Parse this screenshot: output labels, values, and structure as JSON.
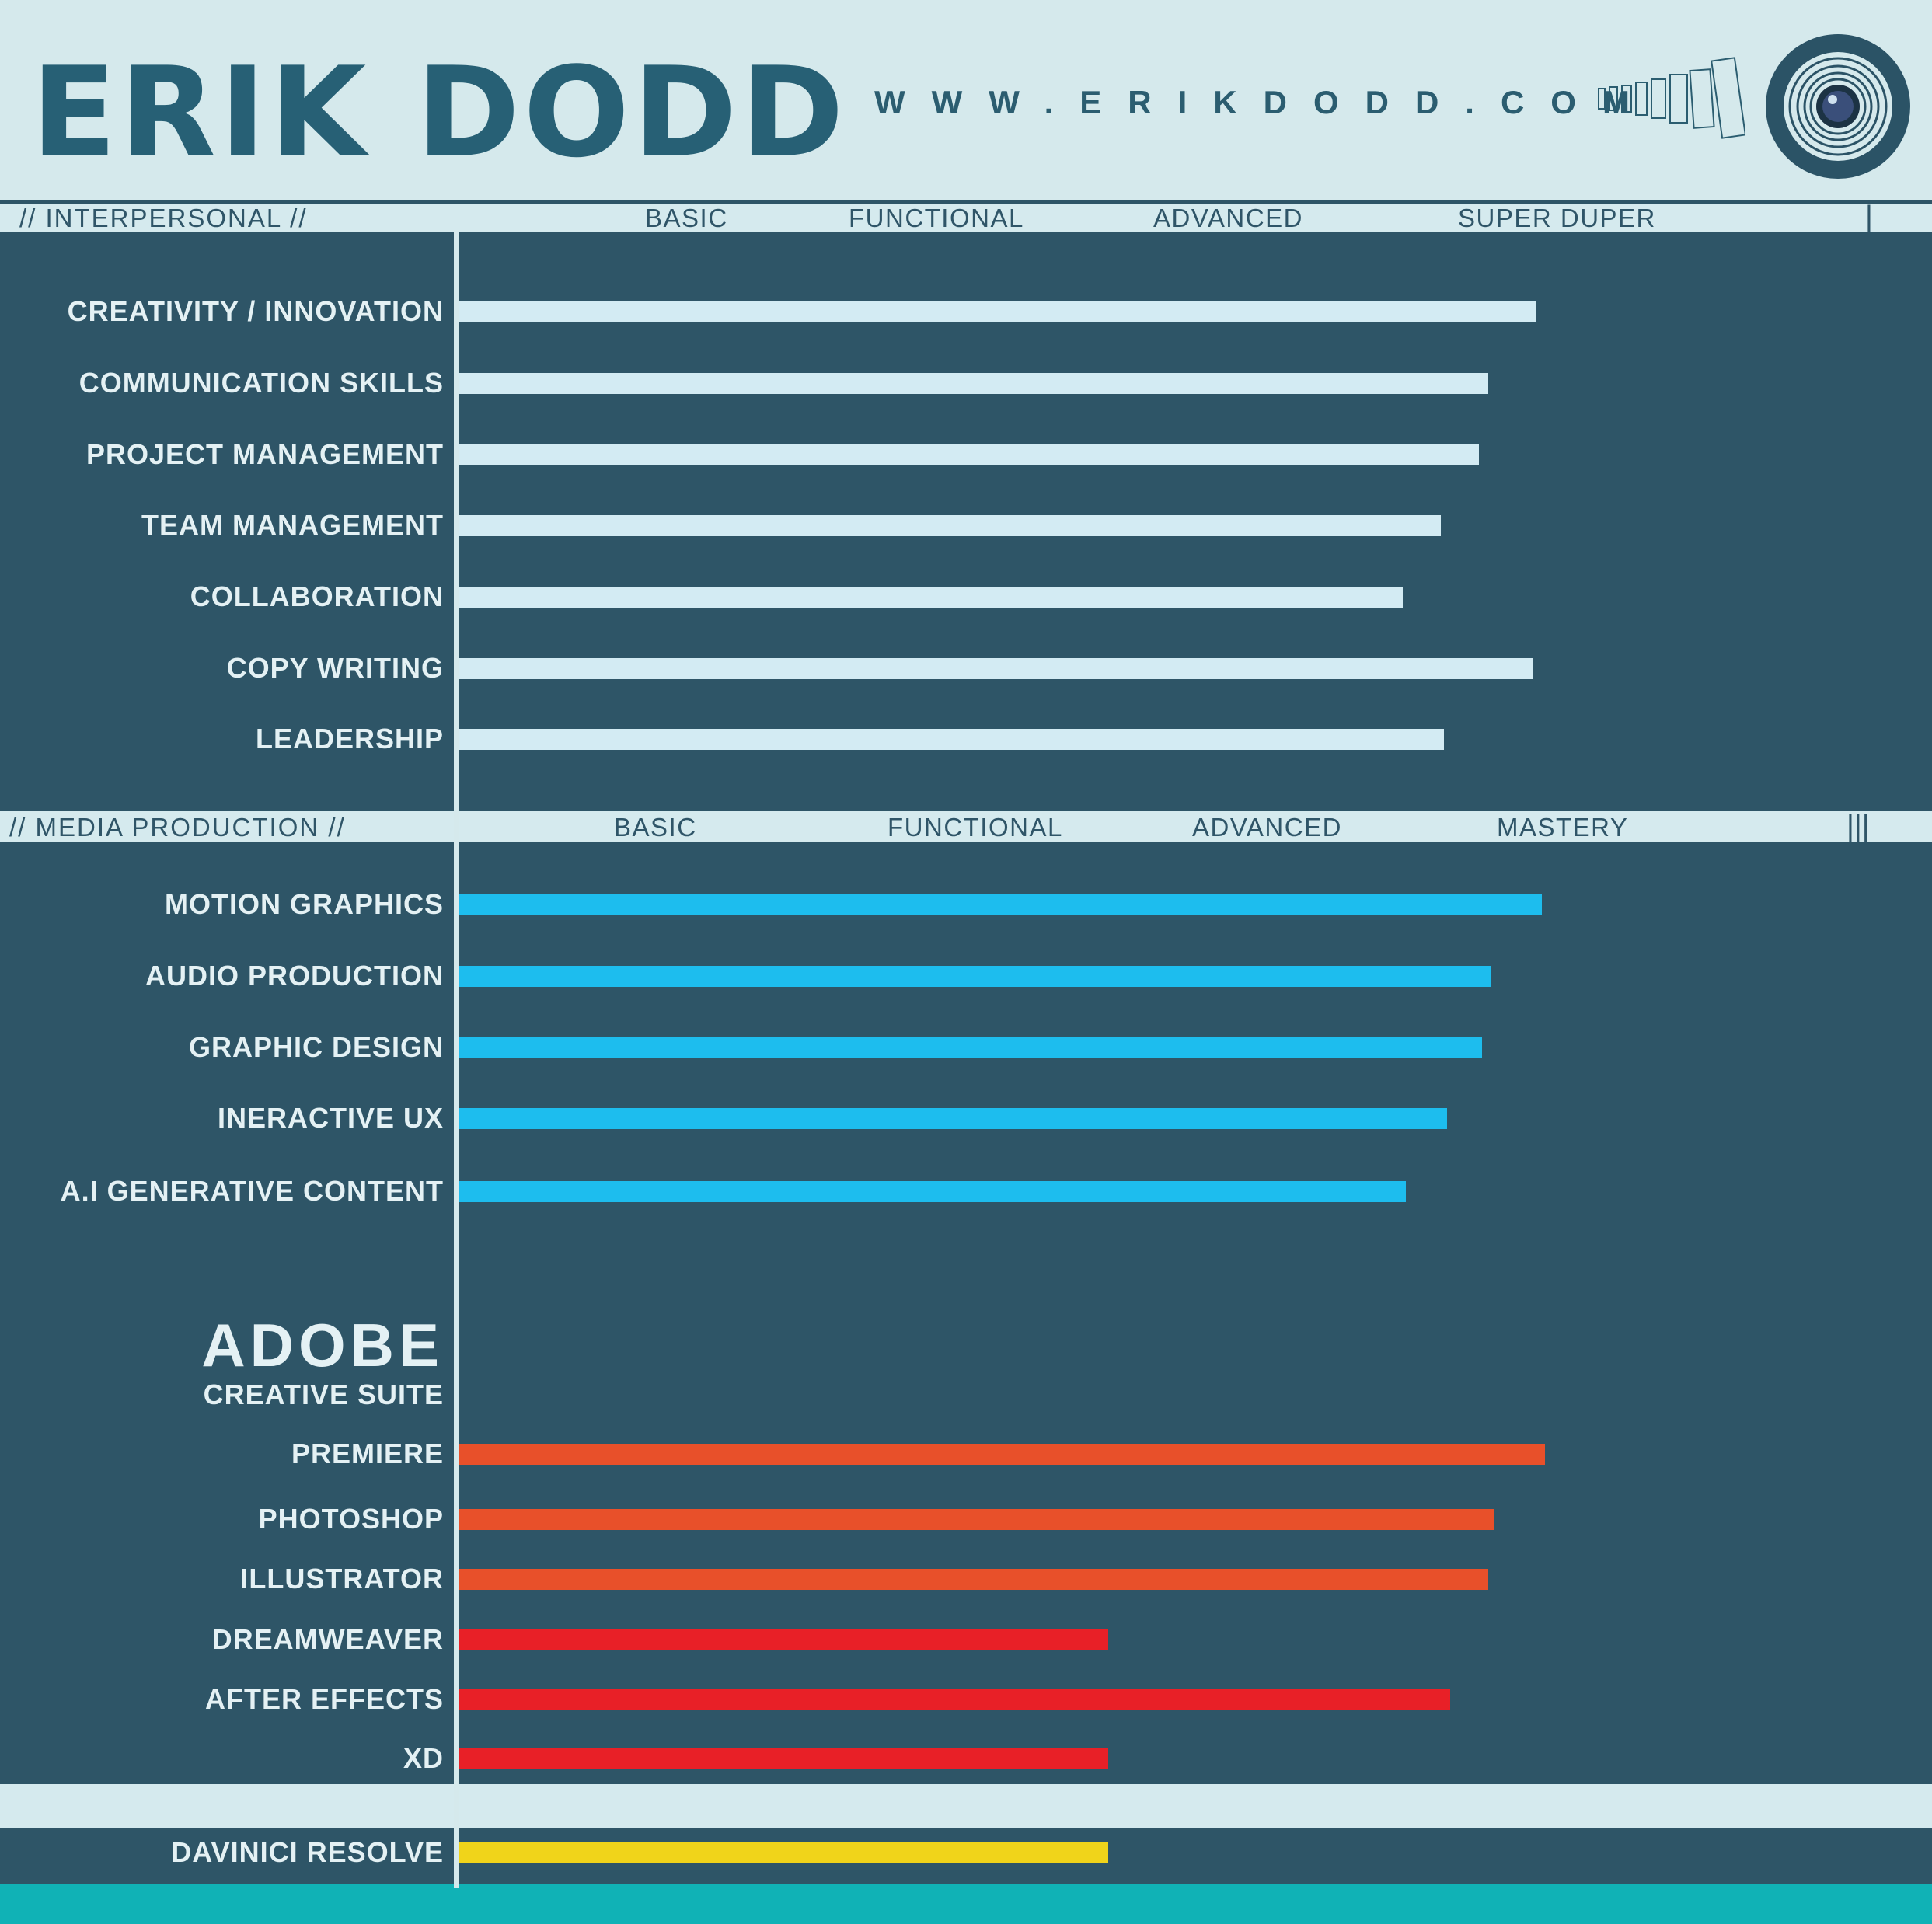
{
  "header": {
    "logo": "ERIK DODD",
    "url": "WWW.ERIKDODD.COM"
  },
  "colors": {
    "background": "#2e5567",
    "header_bg": "#d5e9ec",
    "logo": "#276075",
    "interpersonal_bar": "#d3ebf3",
    "media_bar": "#1dbdee",
    "adobe_orange": "#e8502a",
    "adobe_red": "#e82027",
    "davinci_yellow": "#f0d41a",
    "footer": "#10b2b6"
  },
  "chart_data": [
    {
      "type": "bar",
      "orientation": "horizontal",
      "title": "// INTERPERSONAL //",
      "levels": [
        "BASIC",
        "FUNCTIONAL",
        "ADVANCED",
        "SUPER DUPER"
      ],
      "end_marker": "|",
      "xlim": [
        0,
        4.7
      ],
      "categories": [
        "CREATIVITY / INNOVATION",
        "COMMUNICATION SKILLS",
        "PROJECT MANAGEMENT",
        "TEAM MANAGEMENT",
        "COLLABORATION",
        "COPY WRITING",
        "LEADERSHIP"
      ],
      "values": [
        3.4,
        3.25,
        3.22,
        3.1,
        2.98,
        3.39,
        3.11
      ],
      "color": "#d3ebf3"
    },
    {
      "type": "bar",
      "orientation": "horizontal",
      "title": "// MEDIA PRODUCTION //",
      "levels": [
        "BASIC",
        "FUNCTIONAL",
        "ADVANCED",
        "MASTERY"
      ],
      "end_marker": "|||",
      "xlim": [
        0,
        4.7
      ],
      "categories": [
        "MOTION GRAPHICS",
        "AUDIO PRODUCTION",
        "GRAPHIC DESIGN",
        "INERACTIVE UX",
        "A.I GENERATIVE CONTENT"
      ],
      "values": [
        3.42,
        3.26,
        3.23,
        3.12,
        2.99
      ],
      "color": "#1dbdee"
    },
    {
      "type": "bar",
      "orientation": "horizontal",
      "title": "ADOBE",
      "subtitle": "CREATIVE SUITE",
      "xlim": [
        0,
        4.7
      ],
      "categories": [
        "PREMIERE",
        "PHOTOSHOP",
        "ILLUSTRATOR",
        "DREAMWEAVER",
        "AFTER EFFECTS",
        "XD"
      ],
      "values": [
        3.43,
        3.27,
        3.25,
        2.05,
        3.13,
        2.05
      ],
      "colors": [
        "#e8502a",
        "#e8502a",
        "#e8502a",
        "#e82027",
        "#e82027",
        "#e82027"
      ]
    },
    {
      "type": "bar",
      "orientation": "horizontal",
      "categories": [
        "DAVINICI RESOLVE"
      ],
      "values": [
        2.05
      ],
      "color": "#f0d41a"
    }
  ]
}
